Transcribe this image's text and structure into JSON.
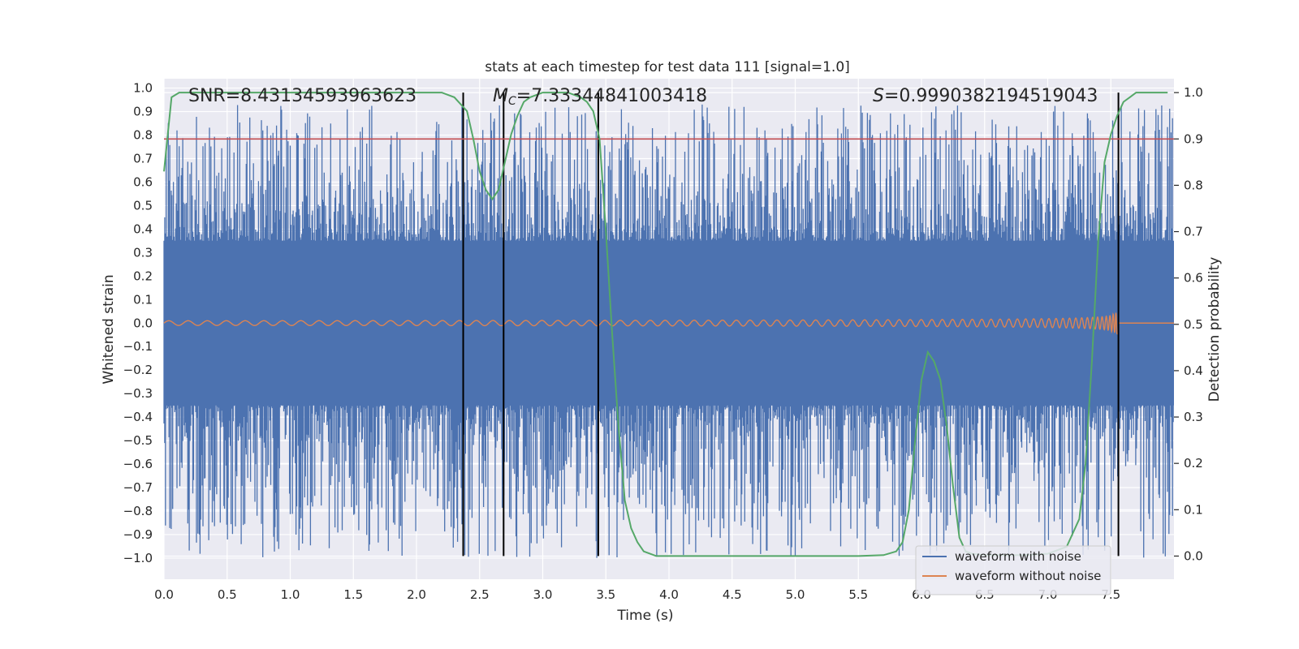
{
  "chart_data": {
    "type": "line",
    "title": "stats at each timestep for test data 111 [signal=1.0]",
    "xlabel": "Time (s)",
    "ylabel_left": "Whitened strain",
    "ylabel_right": "Detection probability",
    "xlim": [
      0.0,
      8.0
    ],
    "ylim_left": [
      -1.09,
      1.04
    ],
    "ylim_right": [
      -0.05,
      1.03
    ],
    "x_ticks": [
      "0.0",
      "0.5",
      "1.0",
      "1.5",
      "2.0",
      "2.5",
      "3.0",
      "3.5",
      "4.0",
      "4.5",
      "5.0",
      "5.5",
      "6.0",
      "6.5",
      "7.0",
      "7.5"
    ],
    "y_ticks_left": [
      "1.0",
      "0.9",
      "0.8",
      "0.7",
      "0.6",
      "0.5",
      "0.4",
      "0.3",
      "0.2",
      "0.1",
      "0.0",
      "−0.1",
      "−0.2",
      "−0.3",
      "−0.4",
      "−0.5",
      "−0.6",
      "−0.7",
      "−0.8",
      "−0.9",
      "−1.0"
    ],
    "y_ticks_right": [
      "1.0",
      "0.9",
      "0.8",
      "0.7",
      "0.6",
      "0.5",
      "0.4",
      "0.3",
      "0.2",
      "0.1",
      "0.0"
    ],
    "annotations": {
      "snr": "SNR=8.43134593963623",
      "mc_symbol": "M",
      "mc_sub": "C",
      "mc_value": "=7.33344841003418",
      "s_symbol": "S",
      "s_value": "=0.9990382194519043"
    },
    "threshold": 0.9,
    "detection_bounds": [
      2.37,
      2.69,
      3.44,
      7.56
    ],
    "noisy_envelope": {
      "core_amplitude": 0.35,
      "spike_max": 0.93,
      "spike_min": -1.0
    },
    "clean_signal": {
      "start_amplitude": 0.01,
      "peak_amplitude": 0.25,
      "peak_time": 7.55,
      "ends_at": 7.56
    },
    "detection_probability": {
      "x": [
        0.0,
        0.06,
        0.12,
        0.2,
        0.5,
        1.0,
        1.5,
        2.0,
        2.2,
        2.3,
        2.4,
        2.45,
        2.5,
        2.55,
        2.6,
        2.65,
        2.7,
        2.75,
        2.8,
        2.85,
        2.9,
        3.0,
        3.1,
        3.2,
        3.3,
        3.35,
        3.4,
        3.45,
        3.5,
        3.55,
        3.6,
        3.65,
        3.7,
        3.75,
        3.8,
        3.85,
        3.9,
        4.0,
        4.5,
        5.0,
        5.5,
        5.7,
        5.8,
        5.85,
        5.9,
        5.95,
        6.0,
        6.05,
        6.1,
        6.15,
        6.2,
        6.25,
        6.3,
        6.35,
        6.4,
        6.5,
        6.8,
        7.0,
        7.15,
        7.25,
        7.3,
        7.35,
        7.4,
        7.45,
        7.5,
        7.55,
        7.6,
        7.65,
        7.7,
        7.75,
        7.8,
        7.9,
        7.95
      ],
      "values": [
        0.83,
        0.99,
        1.0,
        1.0,
        1.0,
        1.0,
        1.0,
        1.0,
        1.0,
        0.99,
        0.96,
        0.9,
        0.83,
        0.79,
        0.77,
        0.79,
        0.85,
        0.91,
        0.95,
        0.98,
        0.99,
        1.0,
        1.0,
        1.0,
        0.99,
        0.98,
        0.96,
        0.9,
        0.7,
        0.48,
        0.28,
        0.12,
        0.06,
        0.03,
        0.01,
        0.005,
        0.0,
        0.0,
        0.0,
        0.0,
        0.0,
        0.002,
        0.01,
        0.03,
        0.1,
        0.25,
        0.38,
        0.44,
        0.42,
        0.38,
        0.28,
        0.15,
        0.04,
        0.01,
        0.005,
        0.002,
        0.002,
        0.005,
        0.02,
        0.08,
        0.2,
        0.42,
        0.68,
        0.85,
        0.91,
        0.95,
        0.98,
        0.99,
        1.0,
        1.0,
        1.0,
        1.0,
        1.0
      ]
    },
    "series": [
      {
        "name": "waveform with noise",
        "color": "#4c72b0"
      },
      {
        "name": "waveform without noise",
        "color": "#dd8452"
      },
      {
        "color": "#55a868"
      },
      {
        "color": "#c44e52"
      }
    ],
    "colors": {
      "plot_bg": "#eaeaf2",
      "grid": "#ffffff",
      "bound_line": "#000000"
    },
    "grid": true,
    "legend_position": "lower-right"
  }
}
